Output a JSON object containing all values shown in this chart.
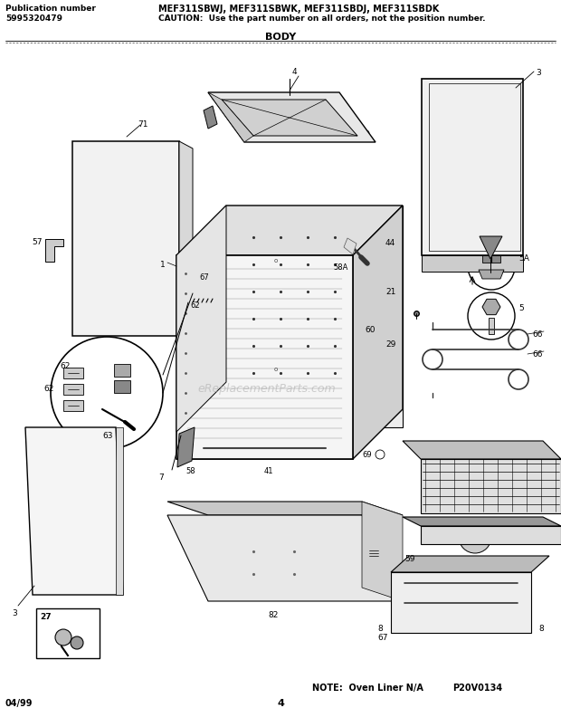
{
  "title_model": "MEF311SBWJ, MEF311SBWK, MEF311SBDJ, MEF311SBDK",
  "title_caution": "CAUTION:  Use the part number on all orders, not the position number.",
  "pub_label": "Publication number",
  "pub_number": "5995320479",
  "section": "BODY",
  "note_text": "NOTE:  Oven Liner N/A",
  "diagram_code": "P20V0134",
  "date": "04/99",
  "page": "4",
  "bg_color": "#ffffff",
  "watermark": "eReplacementParts.com",
  "fig_width": 6.2,
  "fig_height": 8.04,
  "dpi": 100
}
